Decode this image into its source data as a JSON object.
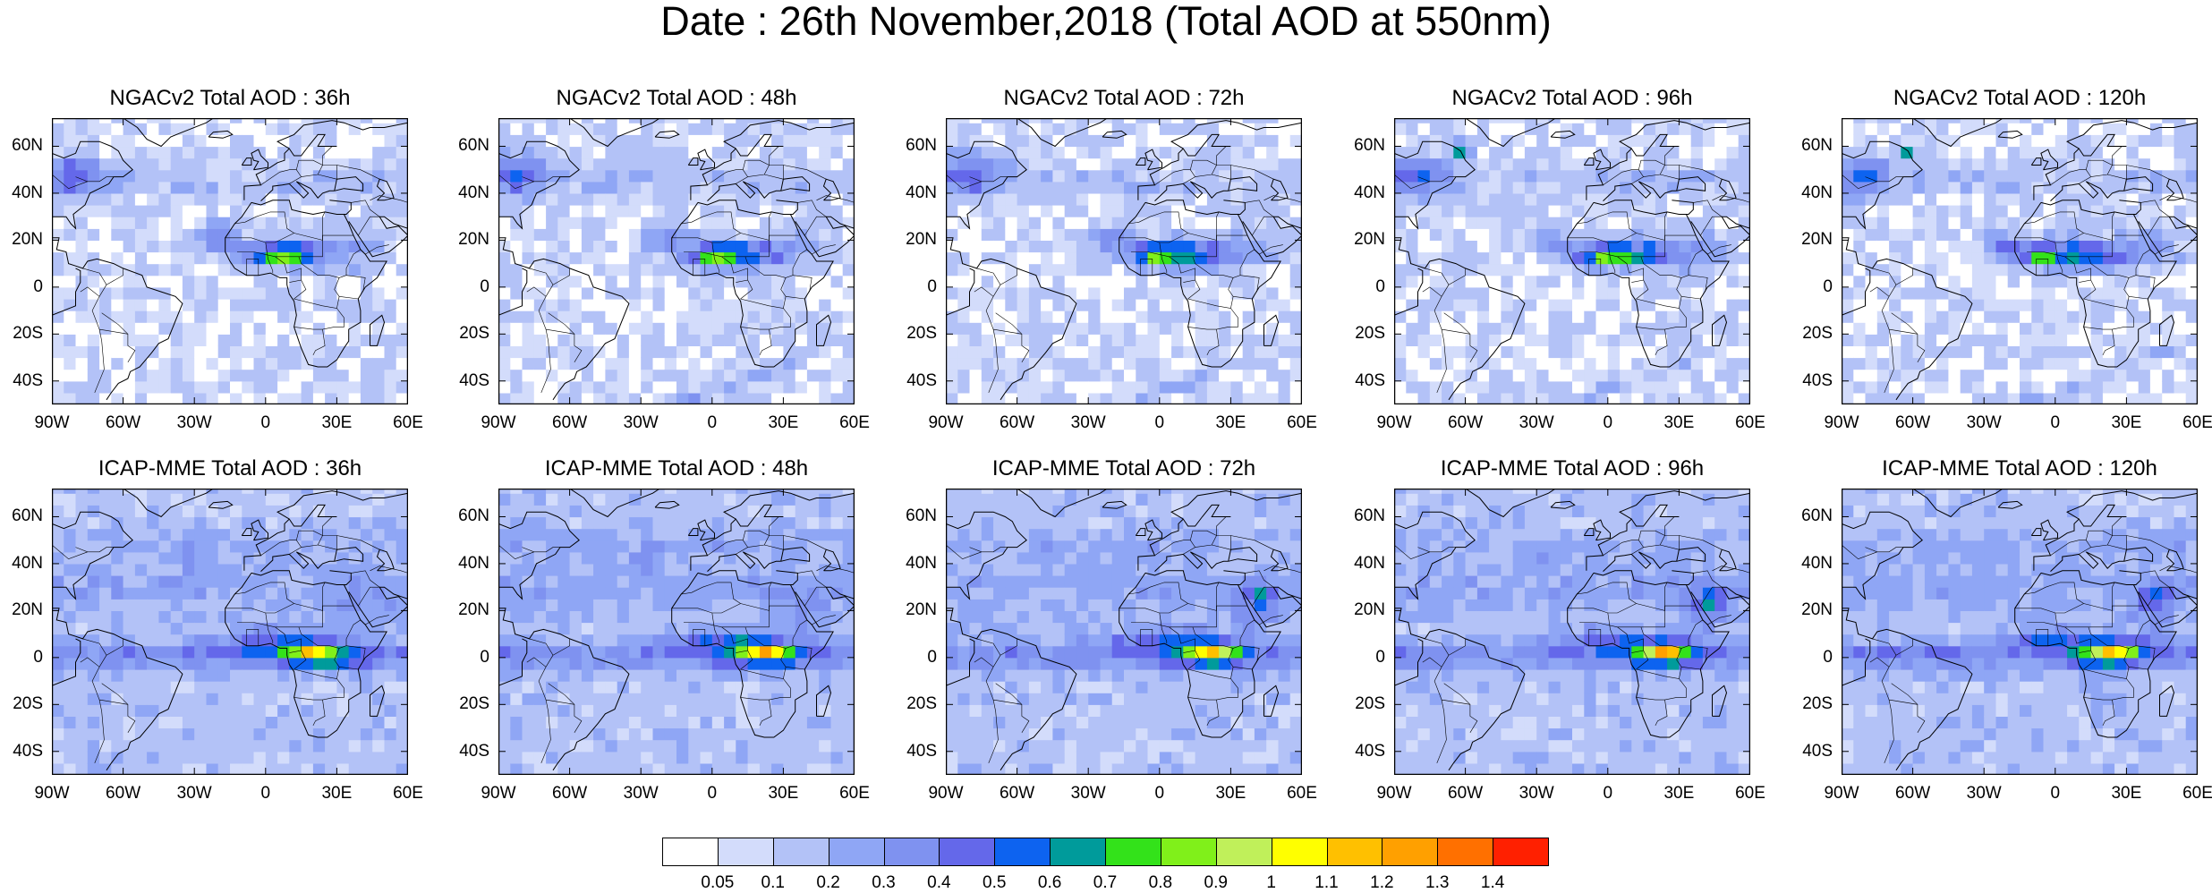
{
  "title": "Date : 26th November,2018 (Total AOD at 550nm)",
  "axes": {
    "lat_ticks": [
      "60N",
      "40N",
      "20N",
      "0",
      "20S",
      "40S"
    ],
    "lat_values": [
      60,
      40,
      20,
      0,
      -20,
      -40
    ],
    "lon_ticks": [
      "90W",
      "60W",
      "30W",
      "0",
      "30E",
      "60E"
    ],
    "lon_values": [
      -90,
      -60,
      -30,
      0,
      30,
      60
    ],
    "lat_range": [
      -50,
      72
    ],
    "lon_range": [
      -90,
      60
    ]
  },
  "panels": [
    {
      "id": "ngac-36",
      "title": "NGACv2 Total AOD : 36h",
      "model": "ngac"
    },
    {
      "id": "ngac-48",
      "title": "NGACv2 Total AOD : 48h",
      "model": "ngac"
    },
    {
      "id": "ngac-72",
      "title": "NGACv2 Total AOD : 72h",
      "model": "ngac"
    },
    {
      "id": "ngac-96",
      "title": "NGACv2 Total AOD : 96h",
      "model": "ngac"
    },
    {
      "id": "ngac-120",
      "title": "NGACv2 Total AOD : 120h",
      "model": "ngac"
    },
    {
      "id": "icap-36",
      "title": "ICAP-MME Total AOD : 36h",
      "model": "icap"
    },
    {
      "id": "icap-48",
      "title": "ICAP-MME Total AOD : 48h",
      "model": "icap"
    },
    {
      "id": "icap-72",
      "title": "ICAP-MME Total AOD : 72h",
      "model": "icap"
    },
    {
      "id": "icap-96",
      "title": "ICAP-MME Total AOD : 96h",
      "model": "icap"
    },
    {
      "id": "icap-120",
      "title": "ICAP-MME Total AOD : 120h",
      "model": "icap"
    }
  ],
  "colorbar": {
    "labels": [
      "0.05",
      "0.1",
      "0.2",
      "0.3",
      "0.4",
      "0.5",
      "0.6",
      "0.7",
      "0.8",
      "0.9",
      "1",
      "1.1",
      "1.2",
      "1.3",
      "1.4"
    ],
    "colors": [
      "#ffffff",
      "#d3dcfb",
      "#b3c2f7",
      "#8fa6f5",
      "#7f92f0",
      "#6468ea",
      "#0d63f0",
      "#009b9b",
      "#33e21a",
      "#80f01a",
      "#c0f05a",
      "#ffff00",
      "#ffc000",
      "#ffa000",
      "#ff7000",
      "#ff2000"
    ]
  }
}
